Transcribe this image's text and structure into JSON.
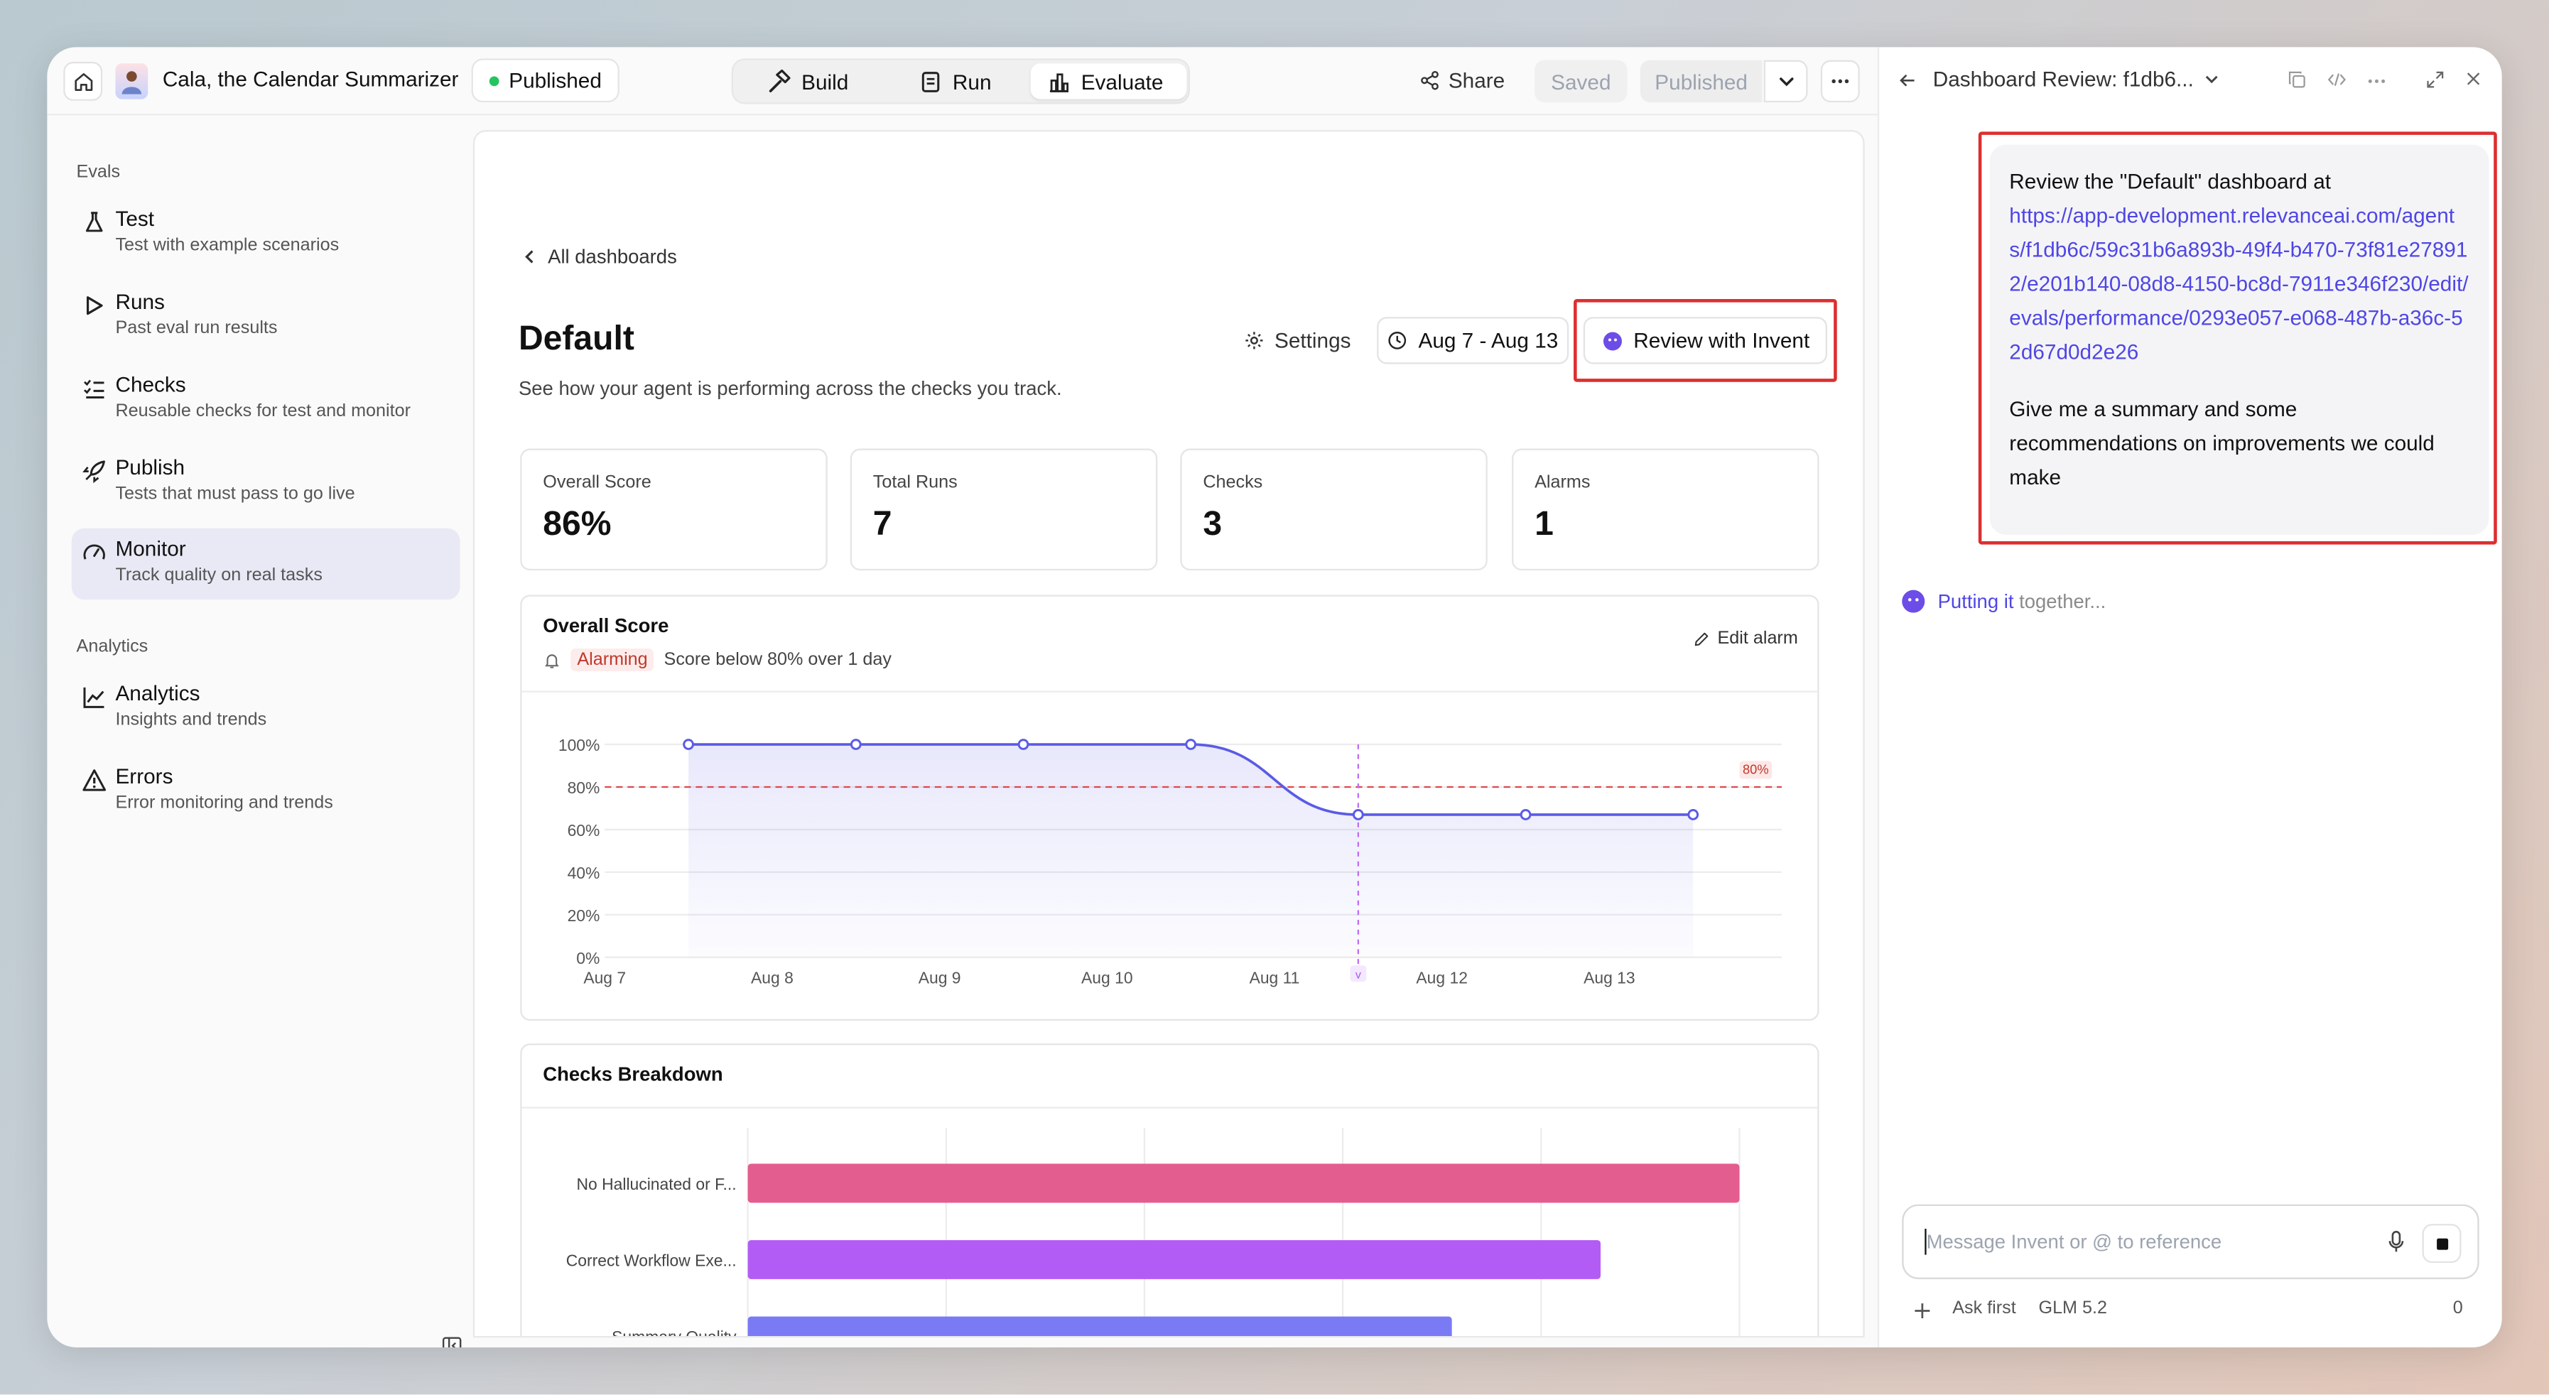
{
  "topbar": {
    "agent_name": "Cala, the Calendar Summarizer",
    "status_badge": "Published",
    "tabs": [
      {
        "label": "Build"
      },
      {
        "label": "Run"
      },
      {
        "label": "Evaluate"
      }
    ],
    "active_tab": "Evaluate",
    "share_label": "Share",
    "saved_label": "Saved",
    "published_label": "Published"
  },
  "sidebar": {
    "section_evals": "Evals",
    "section_analytics": "Analytics",
    "items": [
      {
        "title": "Test",
        "subtitle": "Test with example scenarios",
        "icon": "flask-icon"
      },
      {
        "title": "Runs",
        "subtitle": "Past eval run results",
        "icon": "play-icon"
      },
      {
        "title": "Checks",
        "subtitle": "Reusable checks for test and monitor",
        "icon": "checklist-icon"
      },
      {
        "title": "Publish",
        "subtitle": "Tests that must pass to go live",
        "icon": "rocket-icon"
      },
      {
        "title": "Monitor",
        "subtitle": "Track quality on real tasks",
        "icon": "gauge-icon"
      },
      {
        "title": "Analytics",
        "subtitle": "Insights and trends",
        "icon": "line-chart-icon"
      },
      {
        "title": "Errors",
        "subtitle": "Error monitoring and trends",
        "icon": "warning-icon"
      }
    ],
    "active_item": "Monitor"
  },
  "main": {
    "back_label": "All dashboards",
    "title": "Default",
    "subtitle": "See how your agent is performing across the checks you track.",
    "settings_label": "Settings",
    "date_range": "Aug 7 - Aug 13",
    "review_label": "Review with Invent",
    "stats": [
      {
        "label": "Overall Score",
        "value": "86%"
      },
      {
        "label": "Total Runs",
        "value": "7"
      },
      {
        "label": "Checks",
        "value": "3"
      },
      {
        "label": "Alarms",
        "value": "1"
      }
    ],
    "score_card": {
      "title": "Overall Score",
      "alarm_badge": "Alarming",
      "alarm_text": "Score below 80% over 1 day",
      "edit_label": "Edit alarm",
      "threshold_label": "80%",
      "marker_label": "v"
    },
    "breakdown_card": {
      "title": "Checks Breakdown"
    }
  },
  "chart_data": [
    {
      "type": "line",
      "title": "Overall Score",
      "x": [
        "Aug 7",
        "Aug 8",
        "Aug 9",
        "Aug 10",
        "Aug 11",
        "Aug 12",
        "Aug 13"
      ],
      "series": [
        {
          "values": [
            100,
            100,
            100,
            100,
            67,
            67,
            67
          ]
        }
      ],
      "yticks": [
        "0%",
        "20%",
        "40%",
        "60%",
        "80%",
        "100%"
      ],
      "ylim": [
        0,
        100
      ],
      "threshold": 80,
      "threshold_color": "#e0474c",
      "line_color": "#5b5be6",
      "grid": true
    },
    {
      "type": "bar",
      "orientation": "horizontal",
      "title": "Checks Breakdown",
      "categories": [
        "No Hallucinated or F...",
        "Correct Workflow Exe...",
        "Summary Quality"
      ],
      "values": [
        100,
        86,
        71
      ],
      "xlim": [
        0,
        100
      ],
      "colors": [
        "#e35d8f",
        "#b35cf5",
        "#7a7af5"
      ],
      "grid": true
    }
  ],
  "chat": {
    "title": "Dashboard Review: f1db6...",
    "message_intro": "Review the \"Default\" dashboard at",
    "message_link": "https://app-development.relevanceai.com/agents/f1db6c/59c31b6a893b-49f4-b470-73f81e278912/e201b140-08d8-4150-bc8d-7911e346f230/edit/evals/performance/0293e057-e068-487b-a36c-52d67d0d2e26",
    "message_outro": "Give me a summary and some recommendations on improvements we could make",
    "status_blue": "Putting it",
    "status_rest": "together...",
    "input_placeholder": "Message Invent or @ to reference",
    "ask_first": "Ask first",
    "model": "GLM 5.2",
    "count": "0"
  }
}
